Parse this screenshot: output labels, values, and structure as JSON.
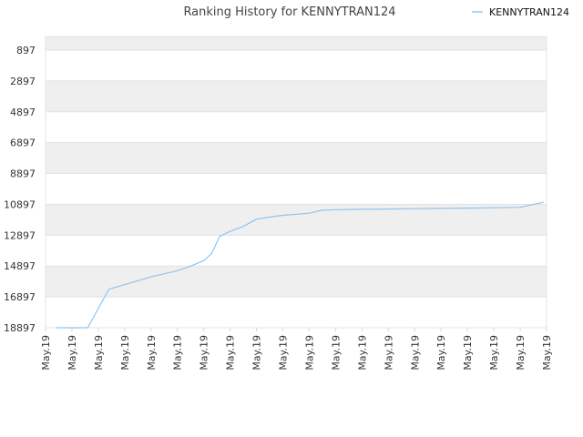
{
  "chart_data": {
    "type": "line",
    "title": "Ranking History for KENNYTRAN124",
    "xlabel": "",
    "ylabel": "",
    "y_inverted": true,
    "ylim": [
      18897,
      897
    ],
    "yticks": [
      897,
      2897,
      4897,
      6897,
      8897,
      10897,
      12897,
      14897,
      16897,
      18897
    ],
    "x_tick_labels": [
      "May.19",
      "May.19",
      "May.19",
      "May.19",
      "May.19",
      "May.19",
      "May.19",
      "May.19",
      "May.19",
      "May.19",
      "May.19",
      "May.19",
      "May.19",
      "May.19",
      "May.19",
      "May.19",
      "May.19",
      "May.19",
      "May.19",
      "May.19"
    ],
    "grid": "horizontal bands",
    "legend": "top-right",
    "series": [
      {
        "name": "KENNYTRAN124",
        "color": "#90c4f0",
        "x": [
          0.4,
          1.6,
          2.4,
          3.2,
          4.0,
          5.0,
          5.5,
          6.0,
          6.3,
          6.6,
          7.0,
          7.5,
          8.0,
          8.5,
          9.0,
          10.0,
          10.5,
          11.0,
          12.0,
          13.0,
          14.0,
          15.0,
          16.0,
          17.0,
          18.0,
          18.9
        ],
        "values": [
          18897,
          18897,
          16400,
          16000,
          15600,
          15200,
          14900,
          14550,
          14080,
          12980,
          12650,
          12330,
          11860,
          11720,
          11610,
          11470,
          11270,
          11240,
          11220,
          11200,
          11180,
          11160,
          11140,
          11120,
          11090,
          10760
        ]
      }
    ]
  }
}
